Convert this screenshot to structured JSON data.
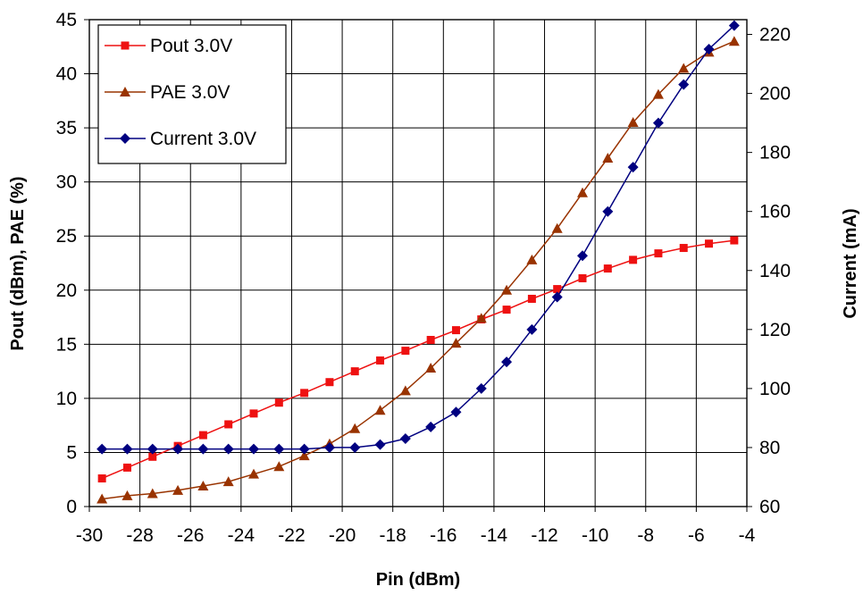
{
  "chart_data": {
    "type": "line",
    "title": "",
    "xlabel": "Pin (dBm)",
    "ylabel": "Pout (dBm), PAE (%)",
    "y2label": "Current (mA)",
    "xlim": [
      -30,
      -4
    ],
    "ylim": [
      0,
      45
    ],
    "y2lim": [
      60,
      225
    ],
    "xticks": [
      "-30",
      "-28",
      "-26",
      "-24",
      "-22",
      "-20",
      "-18",
      "-16",
      "-14",
      "-12",
      "-10",
      "-8",
      "-6",
      "-4"
    ],
    "yticks": [
      "0",
      "5",
      "10",
      "15",
      "20",
      "25",
      "30",
      "35",
      "40",
      "45"
    ],
    "y2ticks": [
      "60",
      "80",
      "100",
      "120",
      "140",
      "160",
      "180",
      "200",
      "220"
    ],
    "grid": true,
    "legend_position": "top-left",
    "x": [
      -29.5,
      -28.5,
      -27.5,
      -26.5,
      -25.5,
      -24.5,
      -23.5,
      -22.5,
      -21.5,
      -20.5,
      -19.5,
      -18.5,
      -17.5,
      -16.5,
      -15.5,
      -14.5,
      -13.5,
      -12.5,
      -11.5,
      -10.5,
      -9.5,
      -8.5,
      -7.5,
      -6.5,
      -5.5,
      -4.5
    ],
    "series": [
      {
        "name": "Pout 3.0V",
        "axis": "left",
        "color": "#ee1111",
        "marker": "square",
        "values": [
          2.6,
          3.6,
          4.6,
          5.6,
          6.6,
          7.6,
          8.6,
          9.6,
          10.5,
          11.5,
          12.5,
          13.5,
          14.4,
          15.4,
          16.3,
          17.3,
          18.2,
          19.2,
          20.1,
          21.1,
          22.0,
          22.8,
          23.4,
          23.9,
          24.3,
          24.6
        ]
      },
      {
        "name": "PAE 3.0V",
        "axis": "left",
        "color": "#993300",
        "marker": "triangle",
        "values": [
          0.7,
          1.0,
          1.2,
          1.5,
          1.9,
          2.3,
          3.0,
          3.7,
          4.7,
          5.8,
          7.2,
          8.9,
          10.7,
          12.8,
          15.1,
          17.4,
          20.0,
          22.8,
          25.7,
          29.0,
          32.2,
          35.5,
          38.1,
          40.5,
          42.0,
          43.0
        ]
      },
      {
        "name": "Current 3.0V",
        "axis": "right",
        "color": "#000080",
        "marker": "diamond",
        "values": [
          79.5,
          79.5,
          79.5,
          79.5,
          79.5,
          79.5,
          79.5,
          79.5,
          79.5,
          80,
          80,
          81,
          83,
          87,
          92,
          100,
          109,
          120,
          131,
          145,
          160,
          175,
          190,
          203,
          215,
          223
        ]
      }
    ]
  }
}
